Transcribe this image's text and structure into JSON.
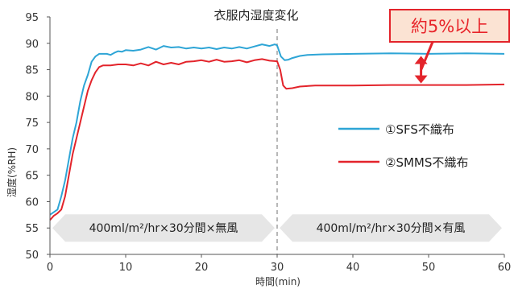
{
  "chart_data": {
    "type": "line",
    "title": "衣服内湿度変化",
    "xlabel": "時間(min)",
    "ylabel": "湿度(%RH)",
    "xlim": [
      0,
      60
    ],
    "ylim": [
      50,
      95
    ],
    "x_ticks": [
      0,
      10,
      20,
      30,
      40,
      50,
      60
    ],
    "y_ticks": [
      50,
      55,
      60,
      65,
      70,
      75,
      80,
      85,
      90,
      95
    ],
    "grid": false,
    "legend_position": "center-right",
    "series": [
      {
        "name": "①SFS不織布",
        "color": "#2ea5d6",
        "points": [
          [
            0,
            57.5
          ],
          [
            0.5,
            58
          ],
          [
            1,
            58.5
          ],
          [
            1.5,
            61
          ],
          [
            2,
            64
          ],
          [
            2.5,
            68
          ],
          [
            3,
            72
          ],
          [
            3.5,
            75
          ],
          [
            4,
            79
          ],
          [
            4.5,
            82
          ],
          [
            5,
            84
          ],
          [
            5.5,
            86.5
          ],
          [
            6,
            87.5
          ],
          [
            6.5,
            88
          ],
          [
            7,
            88
          ],
          [
            7.5,
            88
          ],
          [
            8,
            87.8
          ],
          [
            8.5,
            88.2
          ],
          [
            9,
            88.5
          ],
          [
            9.5,
            88.4
          ],
          [
            10,
            88.7
          ],
          [
            11,
            88.6
          ],
          [
            12,
            88.8
          ],
          [
            13,
            89.3
          ],
          [
            14,
            88.8
          ],
          [
            15,
            89.5
          ],
          [
            16,
            89.2
          ],
          [
            17,
            89.3
          ],
          [
            18,
            89
          ],
          [
            19,
            89.2
          ],
          [
            20,
            89
          ],
          [
            21,
            89.2
          ],
          [
            22,
            88.9
          ],
          [
            23,
            89.2
          ],
          [
            24,
            89
          ],
          [
            25,
            89.3
          ],
          [
            26,
            89
          ],
          [
            27,
            89.4
          ],
          [
            28,
            89.8
          ],
          [
            29,
            89.5
          ],
          [
            29.7,
            89.8
          ],
          [
            30,
            89.6
          ],
          [
            30.5,
            87.5
          ],
          [
            31,
            86.8
          ],
          [
            31.5,
            86.9
          ],
          [
            32,
            87.2
          ],
          [
            33,
            87.6
          ],
          [
            34,
            87.8
          ],
          [
            36,
            87.9
          ],
          [
            40,
            88
          ],
          [
            45,
            88.1
          ],
          [
            50,
            88
          ],
          [
            55,
            88.1
          ],
          [
            60,
            88
          ]
        ]
      },
      {
        "name": "②SMMS不織布",
        "color": "#e3242b",
        "points": [
          [
            0,
            56.5
          ],
          [
            0.5,
            57.3
          ],
          [
            1,
            57.8
          ],
          [
            1.5,
            58.5
          ],
          [
            2,
            61
          ],
          [
            2.5,
            65
          ],
          [
            3,
            69
          ],
          [
            3.5,
            72
          ],
          [
            4,
            75
          ],
          [
            4.5,
            78
          ],
          [
            5,
            81
          ],
          [
            5.5,
            83
          ],
          [
            6,
            84.5
          ],
          [
            6.5,
            85.5
          ],
          [
            7,
            85.8
          ],
          [
            8,
            85.8
          ],
          [
            9,
            86
          ],
          [
            10,
            86
          ],
          [
            11,
            85.8
          ],
          [
            12,
            86.2
          ],
          [
            13,
            85.8
          ],
          [
            14,
            86.5
          ],
          [
            15,
            86
          ],
          [
            16,
            86.3
          ],
          [
            17,
            86
          ],
          [
            18,
            86.5
          ],
          [
            19,
            86.6
          ],
          [
            20,
            86.8
          ],
          [
            21,
            86.5
          ],
          [
            22,
            86.9
          ],
          [
            23,
            86.5
          ],
          [
            24,
            86.6
          ],
          [
            25,
            86.8
          ],
          [
            26,
            86.4
          ],
          [
            27,
            86.8
          ],
          [
            28,
            87
          ],
          [
            29,
            86.7
          ],
          [
            30,
            86.6
          ],
          [
            30.4,
            85
          ],
          [
            30.8,
            82
          ],
          [
            31.2,
            81.4
          ],
          [
            32,
            81.5
          ],
          [
            33,
            81.8
          ],
          [
            35,
            82
          ],
          [
            40,
            82
          ],
          [
            45,
            82.1
          ],
          [
            50,
            82.1
          ],
          [
            55,
            82.1
          ],
          [
            60,
            82.2
          ]
        ]
      }
    ],
    "divider_x": 30,
    "phases": [
      {
        "label": "400ml/m²/hr×30分間×無風",
        "x_range": [
          0,
          30
        ],
        "y": 55
      },
      {
        "label": "400ml/m²/hr×30分間×有風",
        "x_range": [
          30,
          60
        ],
        "y": 55
      }
    ],
    "callout": {
      "label": "約5%以上",
      "arrow_x": 49,
      "arrow_from": 87.6,
      "arrow_to": 82.4
    },
    "colors": {
      "axis": "#555555",
      "phase_fill": "#e6e6e6",
      "callout_fill": "#fbe3d3",
      "callout_stroke": "#e3242b"
    }
  }
}
